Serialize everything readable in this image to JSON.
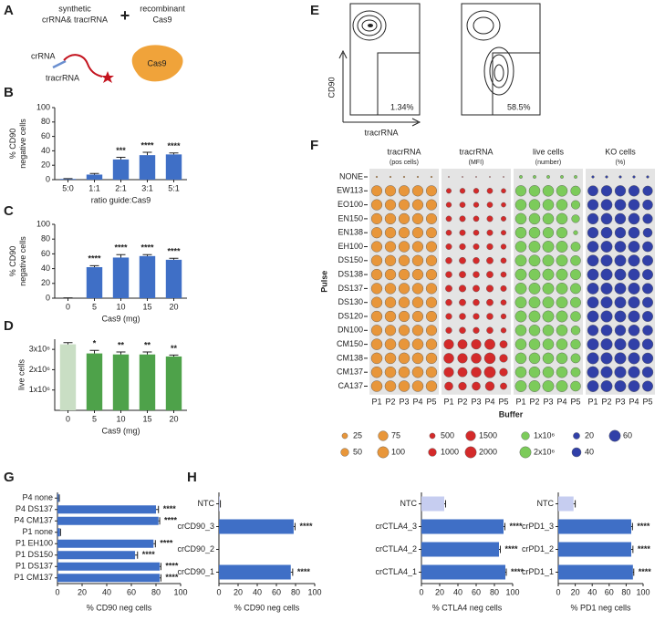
{
  "diagram_a": {
    "panel": "A",
    "left_title": [
      "synthetic",
      "crRNA& tracrRNA"
    ],
    "plus": "+",
    "right_title": [
      "recombinant",
      "Cas9"
    ],
    "crrna": "crRNA",
    "tracrrna": "tracrRNA",
    "protein": "Cas9"
  },
  "flow_e": {
    "panel": "E",
    "gate_labels": [
      "1.34%",
      "58.5%"
    ],
    "ylabel": "CD90",
    "xlabel": "tracrRNA"
  },
  "chart_data": [
    {
      "type": "bar",
      "panel": "B",
      "ylabel": [
        "% CD90",
        "negative cells"
      ],
      "xlabel": "ratio guide:Cas9",
      "categories": [
        "5:0",
        "1:1",
        "2:1",
        "3:1",
        "5:1"
      ],
      "values": [
        1,
        7,
        28,
        34,
        35
      ],
      "errors": [
        0.5,
        1.5,
        3,
        4,
        2
      ],
      "significance": [
        null,
        null,
        "***",
        "****",
        "****"
      ],
      "color": "#3f6fc6",
      "ylim": [
        0,
        100
      ],
      "yticks": [
        0,
        20,
        40,
        60,
        80,
        100
      ]
    },
    {
      "type": "bar",
      "panel": "C",
      "ylabel": [
        "% CD90",
        "negative cells"
      ],
      "xlabel": "Cas9 (mg)",
      "categories": [
        "0",
        "5",
        "10",
        "15",
        "20"
      ],
      "values": [
        0,
        42,
        55,
        57,
        52
      ],
      "errors": [
        0.5,
        2,
        4,
        2,
        2
      ],
      "significance": [
        null,
        "****",
        "****",
        "****",
        "****"
      ],
      "color": "#3f6fc6",
      "ylim": [
        0,
        100
      ],
      "yticks": [
        0,
        20,
        40,
        60,
        80,
        100
      ]
    },
    {
      "type": "bar",
      "panel": "D",
      "ylabel": [
        "live cells"
      ],
      "xlabel": "Cas9 (mg)",
      "categories": [
        "0",
        "5",
        "10",
        "15",
        "20"
      ],
      "values": [
        3250000,
        2800000,
        2750000,
        2750000,
        2650000
      ],
      "errors": [
        80000,
        150000,
        120000,
        120000,
        70000
      ],
      "significance": [
        null,
        "*",
        "**",
        "**",
        "**"
      ],
      "colors": [
        "#c9dec4",
        "#4ea24a",
        "#4ea24a",
        "#4ea24a",
        "#4ea24a"
      ],
      "ylim": [
        0,
        3500000
      ],
      "yticks": [
        {
          "value": 1000000,
          "label": "1x10⁶"
        },
        {
          "value": 2000000,
          "label": "2x10⁶"
        },
        {
          "value": 3000000,
          "label": "3x10⁶"
        }
      ]
    },
    {
      "type": "dot-matrix",
      "panel": "F",
      "xlabel": "Buffer",
      "ylabel": "Pulse",
      "rows": [
        "NONE",
        "EW113",
        "EO100",
        "EN150",
        "EN138",
        "EH100",
        "DS150",
        "DS138",
        "DS137",
        "DS130",
        "DS120",
        "DN100",
        "CM150",
        "CM138",
        "CM137",
        "CA137"
      ],
      "columns": [
        "P1",
        "P2",
        "P3",
        "P4",
        "P5"
      ],
      "panels": [
        {
          "title": "tracrRNA",
          "subtitle": "(pos cells)",
          "color": "#e8963a",
          "legend": [
            25,
            50,
            75,
            100
          ],
          "values": [
            [
              2,
              2,
              2,
              2,
              2
            ],
            [
              88,
              90,
              90,
              90,
              88
            ],
            [
              90,
              90,
              90,
              90,
              88
            ],
            [
              90,
              92,
              90,
              90,
              88
            ],
            [
              90,
              92,
              90,
              90,
              86
            ],
            [
              90,
              90,
              92,
              90,
              88
            ],
            [
              92,
              92,
              92,
              92,
              90
            ],
            [
              92,
              92,
              92,
              92,
              90
            ],
            [
              92,
              92,
              92,
              92,
              90
            ],
            [
              92,
              92,
              92,
              92,
              90
            ],
            [
              92,
              92,
              90,
              90,
              88
            ],
            [
              90,
              90,
              90,
              90,
              88
            ],
            [
              95,
              95,
              95,
              95,
              92
            ],
            [
              95,
              95,
              95,
              95,
              92
            ],
            [
              95,
              95,
              95,
              95,
              92
            ],
            [
              95,
              95,
              95,
              95,
              92
            ]
          ]
        },
        {
          "title": "tracrRNA",
          "subtitle": "(MFI)",
          "color": "#d42a2a",
          "legend": [
            500,
            1000,
            1500,
            2000
          ],
          "values": [
            [
              20,
              20,
              20,
              20,
              20
            ],
            [
              400,
              450,
              450,
              500,
              350
            ],
            [
              450,
              500,
              450,
              500,
              350
            ],
            [
              500,
              550,
              500,
              550,
              400
            ],
            [
              500,
              550,
              500,
              550,
              400
            ],
            [
              550,
              600,
              550,
              600,
              450
            ],
            [
              650,
              700,
              650,
              700,
              500
            ],
            [
              650,
              700,
              650,
              700,
              500
            ],
            [
              700,
              750,
              700,
              750,
              550
            ],
            [
              650,
              700,
              650,
              700,
              500
            ],
            [
              600,
              650,
              600,
              650,
              450
            ],
            [
              600,
              650,
              600,
              650,
              450
            ],
            [
              1500,
              1400,
              1500,
              1700,
              900
            ],
            [
              1600,
              1500,
              1600,
              1900,
              1000
            ],
            [
              1500,
              1400,
              1600,
              2000,
              1000
            ],
            [
              1100,
              1000,
              1100,
              1300,
              700
            ]
          ]
        },
        {
          "title": "live cells",
          "subtitle": "(number)",
          "color": "#7ccb5a",
          "legend": [
            {
              "value": 1000000,
              "label": "1x10⁶"
            },
            {
              "value": 2000000,
              "label": "2x10⁶"
            }
          ],
          "values": [
            [
              150000,
              150000,
              150000,
              150000,
              150000
            ],
            [
              1800000,
              1900000,
              1900000,
              1900000,
              1500000
            ],
            [
              1900000,
              1900000,
              1900000,
              1900000,
              1200000
            ],
            [
              1900000,
              1900000,
              1900000,
              1900000,
              1000000
            ],
            [
              1900000,
              1900000,
              1800000,
              1800000,
              300000
            ],
            [
              1900000,
              2000000,
              2000000,
              2000000,
              1400000
            ],
            [
              2000000,
              2000000,
              2000000,
              2000000,
              1600000
            ],
            [
              2000000,
              2000000,
              2000000,
              2000000,
              1700000
            ],
            [
              2000000,
              2000000,
              2000000,
              2000000,
              1700000
            ],
            [
              2000000,
              2000000,
              2000000,
              2000000,
              1700000
            ],
            [
              2000000,
              2000000,
              2000000,
              2000000,
              1600000
            ],
            [
              1900000,
              1900000,
              1900000,
              1900000,
              1300000
            ],
            [
              1900000,
              1900000,
              1900000,
              1900000,
              1500000
            ],
            [
              1900000,
              1900000,
              1900000,
              1900000,
              1400000
            ],
            [
              1900000,
              1900000,
              1900000,
              1900000,
              1400000
            ],
            [
              2000000,
              2000000,
              2000000,
              2000000,
              1600000
            ]
          ]
        },
        {
          "title": "KO cells",
          "subtitle": "(%)",
          "color": "#3140a8",
          "legend": [
            20,
            40,
            60
          ],
          "values": [
            [
              3,
              3,
              3,
              3,
              3
            ],
            [
              50,
              55,
              55,
              55,
              45
            ],
            [
              55,
              58,
              58,
              58,
              48
            ],
            [
              55,
              58,
              55,
              58,
              45
            ],
            [
              55,
              58,
              55,
              58,
              40
            ],
            [
              58,
              60,
              58,
              60,
              50
            ],
            [
              60,
              62,
              60,
              62,
              52
            ],
            [
              60,
              62,
              60,
              62,
              52
            ],
            [
              60,
              62,
              60,
              62,
              52
            ],
            [
              60,
              62,
              60,
              62,
              52
            ],
            [
              60,
              62,
              60,
              62,
              52
            ],
            [
              55,
              58,
              55,
              58,
              48
            ],
            [
              62,
              62,
              62,
              62,
              55
            ],
            [
              62,
              62,
              62,
              62,
              55
            ],
            [
              62,
              62,
              62,
              62,
              55
            ],
            [
              60,
              60,
              60,
              60,
              52
            ]
          ]
        }
      ]
    },
    {
      "type": "hbar",
      "panel": "G",
      "xlabel": "% CD90 neg cells",
      "categories": [
        "P4 none",
        "P4 DS137",
        "P4 CM137",
        "P1 none",
        "P1 EH100",
        "P1 DS150",
        "P1 DS137",
        "P1 CM137"
      ],
      "values": [
        1,
        80,
        82,
        2,
        78,
        63,
        83,
        83
      ],
      "errors": [
        0.5,
        2,
        1,
        0.5,
        1.5,
        2,
        1,
        1
      ],
      "significance": [
        null,
        "****",
        "****",
        null,
        "****",
        "****",
        "****",
        "****"
      ],
      "color": "#3f6fc6",
      "xlim": [
        0,
        100
      ],
      "xticks": [
        0,
        20,
        40,
        60,
        80,
        100
      ]
    },
    {
      "type": "hbar",
      "panel": "H",
      "xlabel": "% CD90 neg cells",
      "categories": [
        "NTC",
        "crCD90_3",
        "crCD90_2",
        "crCD90_1"
      ],
      "values": [
        1,
        78,
        null,
        75
      ],
      "errors": [
        0.5,
        1.5,
        null,
        2
      ],
      "significance": [
        null,
        "****",
        null,
        "****"
      ],
      "colors": [
        "#c6cdf0",
        "#3f6fc6",
        "#3f6fc6",
        "#3f6fc6"
      ],
      "xlim": [
        0,
        100
      ],
      "xticks": [
        0,
        20,
        40,
        60,
        80,
        100
      ]
    },
    {
      "type": "hbar",
      "xlabel": "% CTLA4 neg cells",
      "categories": [
        "NTC",
        "crCTLA4_3",
        "crCTLA4_2",
        "crCTLA4_1"
      ],
      "values": [
        25,
        90,
        85,
        92
      ],
      "errors": [
        1.5,
        1.5,
        1.5,
        1
      ],
      "significance": [
        null,
        "****",
        "****",
        "****"
      ],
      "colors": [
        "#c6cdf0",
        "#3f6fc6",
        "#3f6fc6",
        "#3f6fc6"
      ],
      "xlim": [
        0,
        100
      ],
      "xticks": [
        0,
        20,
        40,
        60,
        80,
        100
      ]
    },
    {
      "type": "hbar",
      "xlabel": "% PD1 neg cells",
      "categories": [
        "NTC",
        "crPD1_3",
        "crPD1_2",
        "crPD1_1"
      ],
      "values": [
        18,
        86,
        86,
        88
      ],
      "errors": [
        2,
        1.5,
        2,
        1
      ],
      "significance": [
        null,
        "****",
        "****",
        "****"
      ],
      "colors": [
        "#c6cdf0",
        "#3f6fc6",
        "#3f6fc6",
        "#3f6fc6"
      ],
      "xlim": [
        0,
        100
      ],
      "xticks": [
        0,
        20,
        40,
        60,
        80,
        100
      ]
    }
  ]
}
